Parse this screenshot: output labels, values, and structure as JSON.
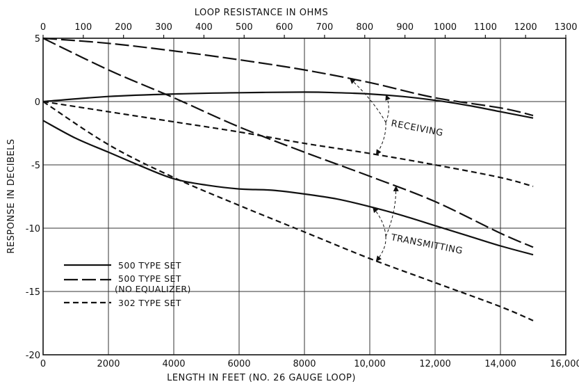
{
  "chart_data": {
    "type": "line",
    "title": "",
    "xlabel": "LENGTH IN FEET (NO. 26 GAUGE LOOP)",
    "ylabel": "RESPONSE IN DECIBELS",
    "x2label": "LOOP RESISTANCE IN OHMS",
    "xlim": [
      0,
      16000
    ],
    "ylim": [
      -20,
      5
    ],
    "x2lim": [
      0,
      1300
    ],
    "x_ticks": [
      0,
      2000,
      4000,
      6000,
      8000,
      10000,
      12000,
      14000,
      16000
    ],
    "x_tick_labels": [
      "0",
      "2000",
      "4000",
      "6000",
      "8000",
      "10,000",
      "12,000",
      "14,000",
      "16,000"
    ],
    "y_ticks": [
      5,
      0,
      -5,
      -10,
      -15,
      -20
    ],
    "y_tick_labels": [
      "5",
      "0",
      "-5",
      "-10",
      "-15",
      "-20"
    ],
    "x2_ticks": [
      0,
      100,
      200,
      300,
      400,
      500,
      600,
      700,
      800,
      900,
      1000,
      1100,
      1200,
      1300
    ],
    "x2_tick_labels": [
      "0",
      "100",
      "200",
      "300",
      "400",
      "500",
      "600",
      "700",
      "800",
      "900",
      "1000",
      "1100",
      "1200",
      "1300"
    ],
    "grid": true,
    "series": [
      {
        "name": "500 TYPE SET",
        "group": "RECEIVING",
        "style": "solid",
        "x": [
          0,
          2000,
          4000,
          6000,
          8000,
          9000,
          10000,
          11000,
          12000,
          13000,
          14000,
          15000
        ],
        "y": [
          0,
          0.4,
          0.6,
          0.7,
          0.75,
          0.7,
          0.6,
          0.4,
          0.1,
          -0.3,
          -0.8,
          -1.3
        ]
      },
      {
        "name": "500 TYPE SET (NO EQUALIZER)",
        "group": "RECEIVING",
        "style": "longdash",
        "x": [
          0,
          2000,
          4000,
          6000,
          8000,
          10000,
          12000,
          14000,
          15000
        ],
        "y": [
          5,
          4.6,
          4.0,
          3.3,
          2.5,
          1.5,
          0.3,
          -0.5,
          -1.1
        ]
      },
      {
        "name": "302 TYPE SET",
        "group": "RECEIVING",
        "style": "shortdash",
        "x": [
          0,
          2000,
          4000,
          6000,
          8000,
          10000,
          12000,
          14000,
          15000
        ],
        "y": [
          0,
          -0.8,
          -1.6,
          -2.4,
          -3.3,
          -4.1,
          -5.0,
          -6.0,
          -6.7
        ]
      },
      {
        "name": "500 TYPE SET",
        "group": "TRANSMITTING",
        "style": "solid",
        "x": [
          0,
          1000,
          2000,
          3000,
          4000,
          5000,
          6000,
          7000,
          8000,
          9000,
          10000,
          11000,
          12000,
          13000,
          14000,
          15000
        ],
        "y": [
          -1.5,
          -2.9,
          -4.0,
          -5.1,
          -6.1,
          -6.6,
          -6.9,
          -7.0,
          -7.3,
          -7.7,
          -8.3,
          -9.0,
          -9.8,
          -10.6,
          -11.4,
          -12.1
        ]
      },
      {
        "name": "500 TYPE SET (NO EQUALIZER)",
        "group": "TRANSMITTING",
        "style": "longdash",
        "x": [
          0,
          2000,
          4000,
          6000,
          8000,
          10000,
          12000,
          14000,
          15000
        ],
        "y": [
          5,
          2.5,
          0.3,
          -2.0,
          -4.0,
          -5.9,
          -7.9,
          -10.4,
          -11.5
        ]
      },
      {
        "name": "302 TYPE SET",
        "group": "TRANSMITTING",
        "style": "shortdash",
        "x": [
          0,
          2000,
          4000,
          6000,
          8000,
          10000,
          12000,
          14000,
          15000
        ],
        "y": [
          0,
          -3.4,
          -6.0,
          -8.2,
          -10.3,
          -12.4,
          -14.3,
          -16.2,
          -17.3
        ]
      }
    ],
    "legend": {
      "placement": "lower-left",
      "entries": [
        {
          "label": "500 TYPE SET",
          "style": "solid"
        },
        {
          "label": "500 TYPE SET",
          "sublabel": "(NO EQUALIZER)",
          "style": "longdash"
        },
        {
          "label": "302 TYPE SET",
          "style": "shortdash"
        }
      ]
    },
    "annotations": [
      {
        "text": "RECEIVING",
        "x": 10500,
        "y": -2.0
      },
      {
        "text": "TRANSMITTING",
        "x": 10500,
        "y": -10.8
      }
    ]
  }
}
